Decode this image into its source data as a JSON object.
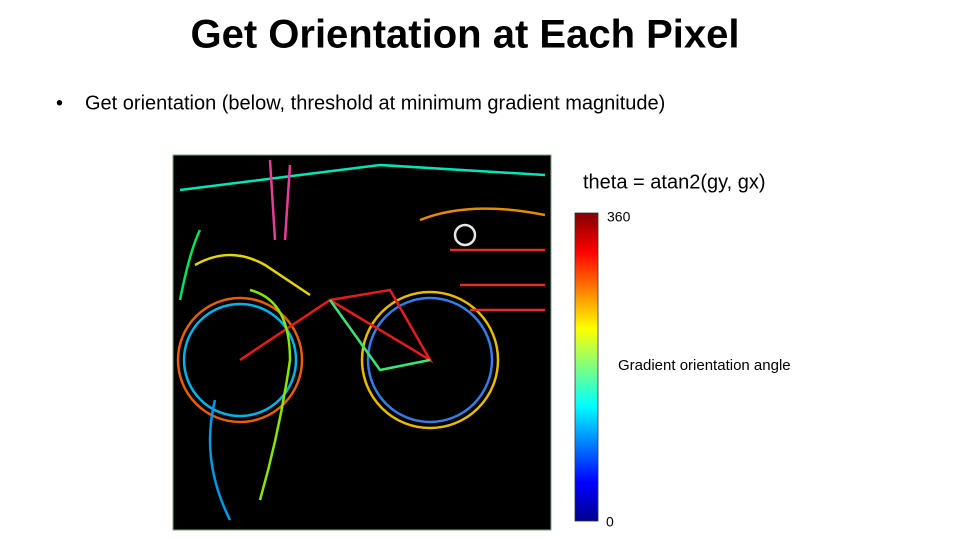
{
  "title": "Get Orientation at Each Pixel",
  "bullet": "Get orientation (below, threshold at minimum gradient magnitude)",
  "formula": "theta = atan2(gy, gx)",
  "colorbar": {
    "max": 360,
    "min": 0,
    "label": "Gradient orientation angle"
  }
}
